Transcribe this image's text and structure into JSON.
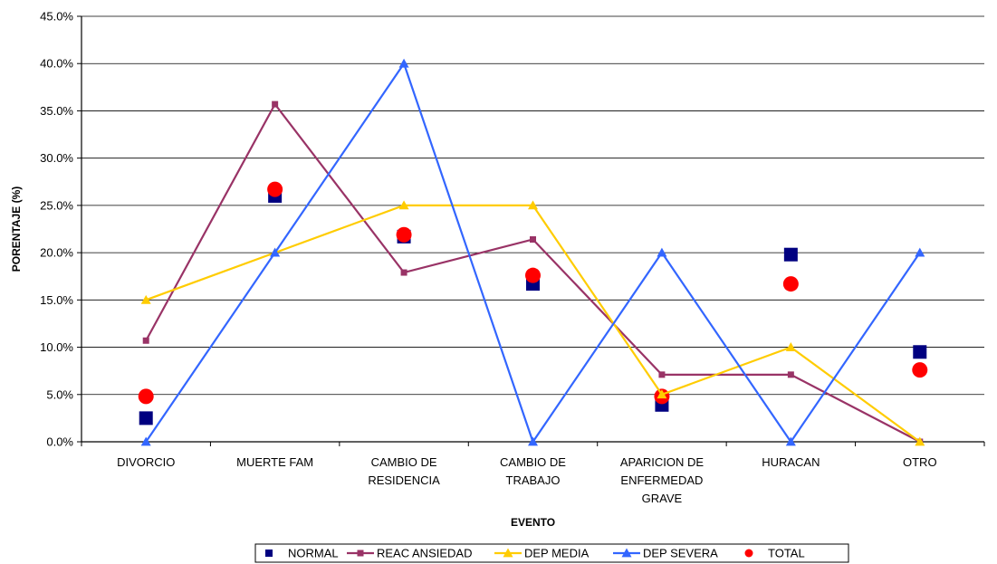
{
  "chart_data": {
    "type": "line",
    "title": "",
    "xlabel": "EVENTO",
    "ylabel": "PORENTAJE (%)",
    "categories": [
      [
        "DIVORCIO"
      ],
      [
        "MUERTE FAM"
      ],
      [
        "CAMBIO DE",
        "RESIDENCIA"
      ],
      [
        "CAMBIO DE",
        "TRABAJO"
      ],
      [
        "APARICION DE",
        "ENFERMEDAD",
        "GRAVE"
      ],
      [
        "HURACAN"
      ],
      [
        "OTRO"
      ]
    ],
    "ylim": [
      0,
      45
    ],
    "yticks": [
      "0.0%",
      "5.0%",
      "10.0%",
      "15.0%",
      "20.0%",
      "25.0%",
      "30.0%",
      "35.0%",
      "40.0%",
      "45.0%"
    ],
    "grid": true,
    "legend_position": "bottom",
    "series": [
      {
        "name": "NORMAL",
        "style": "markers",
        "marker": "square",
        "color": "#000080",
        "values": [
          2.5,
          26.0,
          21.7,
          16.7,
          3.9,
          19.8,
          9.5
        ]
      },
      {
        "name": "REAC ANSIEDAD",
        "style": "line",
        "marker": "square",
        "color": "#993366",
        "values": [
          10.7,
          35.7,
          17.9,
          21.4,
          7.1,
          7.1,
          0.0
        ]
      },
      {
        "name": "DEP MEDIA",
        "style": "line",
        "marker": "triangle",
        "color": "#FFCC00",
        "values": [
          15.0,
          20.0,
          25.0,
          25.0,
          5.0,
          10.0,
          0.0
        ]
      },
      {
        "name": "DEP SEVERA",
        "style": "line",
        "marker": "triangle",
        "color": "#3366FF",
        "values": [
          0.0,
          20.0,
          40.0,
          0.0,
          20.0,
          0.0,
          20.0
        ]
      },
      {
        "name": "TOTAL",
        "style": "markers",
        "marker": "circle",
        "color": "#FF0000",
        "values": [
          4.8,
          26.7,
          21.9,
          17.6,
          4.8,
          16.7,
          7.6
        ]
      }
    ]
  }
}
